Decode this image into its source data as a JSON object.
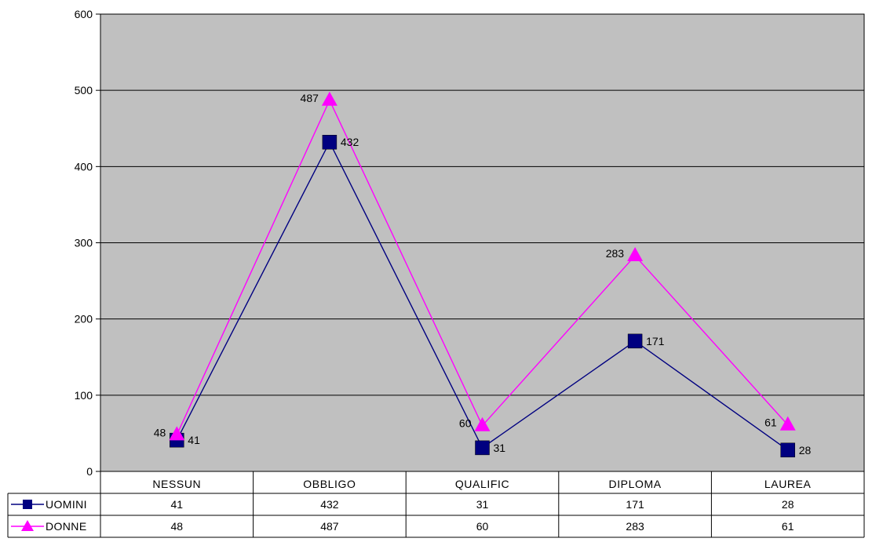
{
  "chart_data": {
    "type": "line",
    "categories": [
      "NESSUN",
      "OBBLIGO",
      "QUALIFIC",
      "DIPLOMA",
      "LAUREA"
    ],
    "series": [
      {
        "name": "UOMINI",
        "values": [
          41,
          432,
          31,
          171,
          28
        ],
        "color": "#000080",
        "marker": "square"
      },
      {
        "name": "DONNE",
        "values": [
          48,
          487,
          60,
          283,
          61
        ],
        "color": "#FF00FF",
        "marker": "triangle"
      }
    ],
    "ylim": [
      0,
      600
    ],
    "yticks": [
      0,
      100,
      200,
      300,
      400,
      500,
      600
    ],
    "grid": true,
    "plot_background": "#C0C0C0",
    "data_table": true,
    "legend": "data-table",
    "title": "",
    "xlabel": "",
    "ylabel": ""
  }
}
